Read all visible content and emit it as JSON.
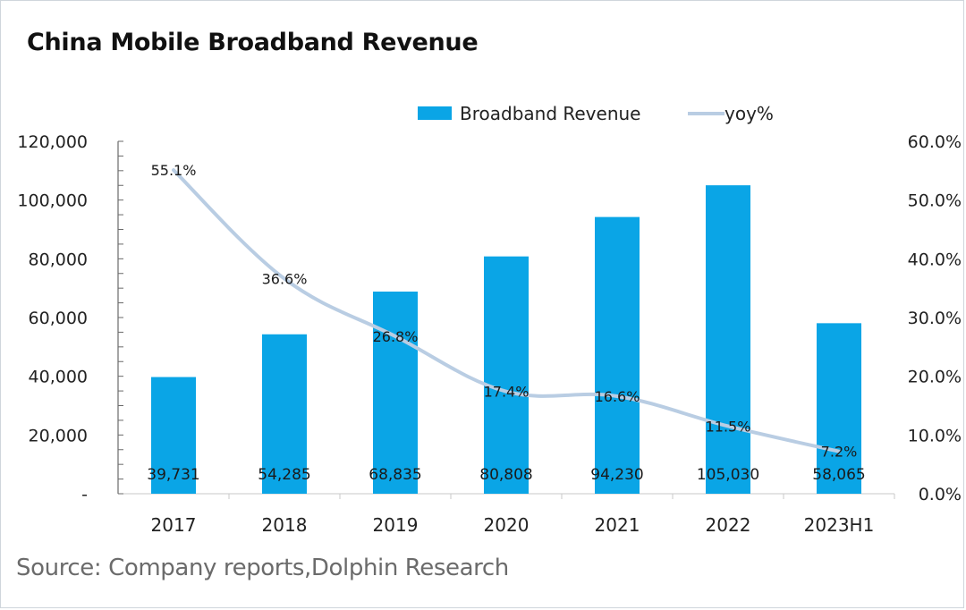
{
  "title": "China Mobile Broadband Revenue",
  "source": "Source: Company reports,Dolphin Research",
  "colors": {
    "bar": "#0aa5e6",
    "line": "#b9cde3",
    "axis": "#6a6a6a",
    "text": "#222222"
  },
  "chart_data": {
    "type": "bar",
    "title": "China Mobile Broadband Revenue",
    "xlabel": "",
    "ylabel": "",
    "categories": [
      "2017",
      "2018",
      "2019",
      "2020",
      "2021",
      "2022",
      "2023H1"
    ],
    "series": [
      {
        "name": "Broadband Revenue",
        "type": "bar",
        "axis": "left",
        "values": [
          39731,
          54285,
          68835,
          80808,
          94230,
          105030,
          58065
        ],
        "labels": [
          "39,731",
          "54,285",
          "68,835",
          "80,808",
          "94,230",
          "105,030",
          "58,065"
        ]
      },
      {
        "name": "yoy%",
        "type": "line",
        "axis": "right",
        "values": [
          55.1,
          36.6,
          26.8,
          17.4,
          16.6,
          11.5,
          7.2
        ],
        "labels": [
          "55.1%",
          "36.6%",
          "26.8%",
          "17.4%",
          "16.6%",
          "11.5%",
          "7.2%"
        ]
      }
    ],
    "ylim": [
      0,
      120000
    ],
    "y2lim": [
      0,
      60
    ],
    "yticks": [
      "-",
      "20,000",
      "40,000",
      "60,000",
      "80,000",
      "100,000",
      "120,000"
    ],
    "y2ticks": [
      "0.0%",
      "10.0%",
      "20.0%",
      "30.0%",
      "40.0%",
      "50.0%",
      "60.0%"
    ],
    "grid": false,
    "legend": [
      "Broadband Revenue",
      "yoy%"
    ],
    "legend_position": "top"
  }
}
